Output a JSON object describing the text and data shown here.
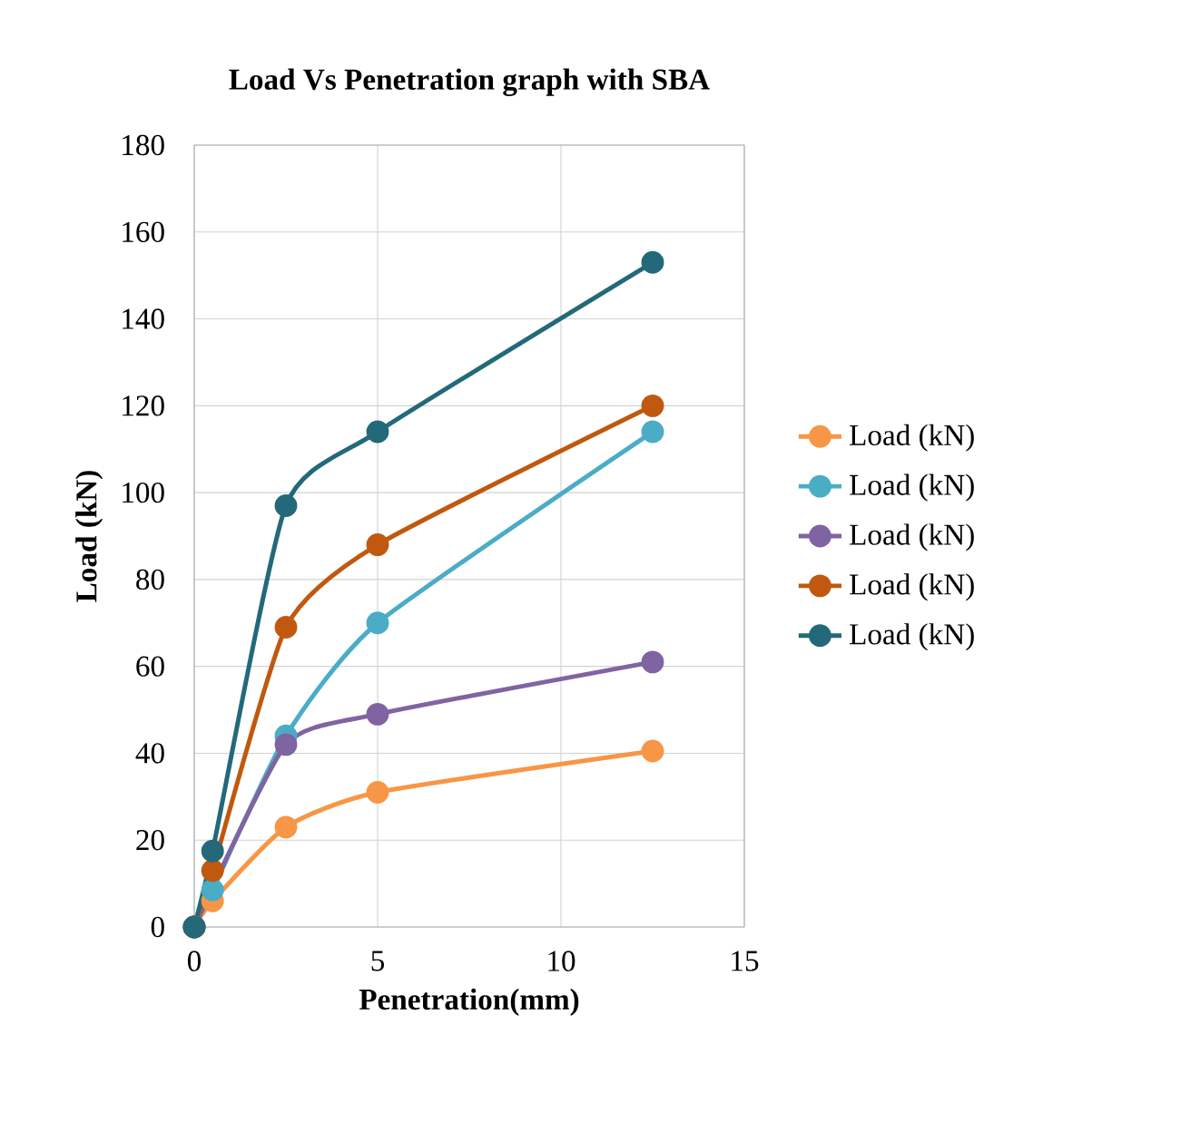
{
  "chart_data": {
    "type": "line",
    "title": "Load Vs Penetration graph with SBA",
    "xlabel": "Penetration(mm)",
    "ylabel": "Load (kN)",
    "x": [
      0,
      0.5,
      2.5,
      5,
      12.5
    ],
    "series": [
      {
        "name": "Load (kN)",
        "color": "#f79646",
        "values": [
          0,
          6,
          23,
          31,
          40.5
        ]
      },
      {
        "name": "Load (kN)",
        "color": "#4bacc6",
        "values": [
          0,
          8.5,
          44,
          70,
          114
        ]
      },
      {
        "name": "Load (kN)",
        "color": "#8064a2",
        "values": [
          0,
          null,
          42,
          49,
          61
        ]
      },
      {
        "name": "Load (kN)",
        "color": "#c0590f",
        "values": [
          0,
          13,
          69,
          88,
          120
        ]
      },
      {
        "name": "Load (kN)",
        "color": "#23697a",
        "values": [
          0,
          17.5,
          97,
          114,
          153
        ]
      }
    ],
    "xlim": [
      0,
      15
    ],
    "ylim": [
      0,
      180
    ],
    "xticks": [
      0,
      5,
      10,
      15
    ],
    "yticks": [
      0,
      20,
      40,
      60,
      80,
      100,
      120,
      140,
      160,
      180
    ],
    "grid": true,
    "legend": "right",
    "marker": "circle",
    "line_style": "solid"
  }
}
